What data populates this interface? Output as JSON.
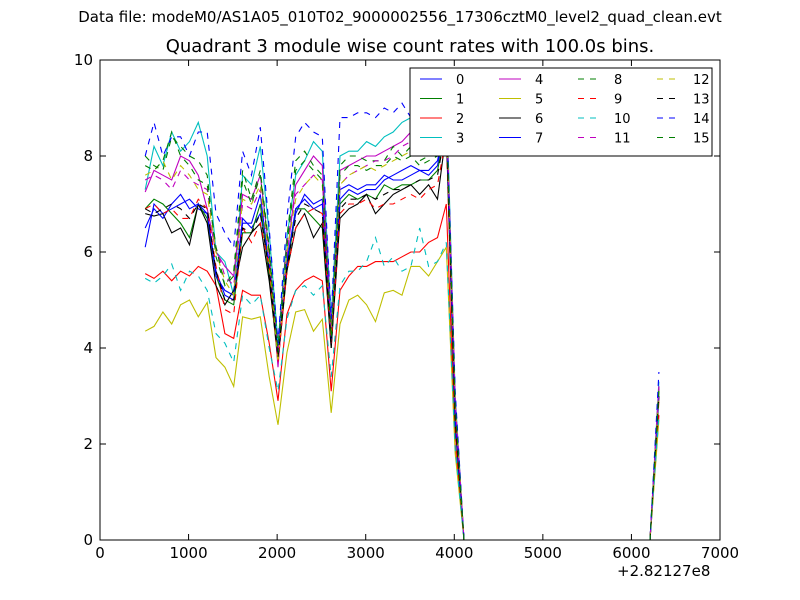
{
  "supertitle": "Data file: modeM0/AS1A05_010T02_9000002556_17306cztM0_level2_quad_clean.evt",
  "chart_data": {
    "type": "line",
    "title": "Quadrant 3 module wise count rates with 100.0s bins.",
    "xlabel": "",
    "ylabel": "",
    "x_offset_label": "+2.82127e8",
    "xlim": [
      0,
      7000
    ],
    "ylim": [
      0,
      10
    ],
    "xticks": [
      0,
      1000,
      2000,
      3000,
      4000,
      5000,
      6000,
      7000
    ],
    "yticks": [
      0,
      2,
      4,
      6,
      8,
      10
    ],
    "grid": false,
    "legend_position": "top-right",
    "legend_columns": 4,
    "x": [
      510,
      610,
      710,
      810,
      910,
      1010,
      1110,
      1210,
      1310,
      1410,
      1510,
      1610,
      1710,
      1810,
      1910,
      2010,
      2110,
      2210,
      2310,
      2410,
      2510,
      2610,
      2710,
      2810,
      2910,
      3010,
      3110,
      3210,
      3310,
      3410,
      3510,
      3610,
      3710,
      3810,
      3910,
      4010,
      4110,
      4210,
      4310,
      4410,
      4510,
      4610,
      4710,
      4810,
      4910,
      5010,
      5110,
      5210,
      5310,
      5410,
      5510,
      5610,
      5710,
      5810,
      5910,
      6010,
      6110,
      6210,
      6310
    ],
    "series": [
      {
        "name": "0",
        "color": "#0000ff",
        "dash": "solid",
        "values": [
          6.1,
          7.0,
          6.8,
          6.9,
          7.0,
          7.1,
          6.9,
          6.8,
          5.6,
          5.1,
          5.0,
          6.7,
          6.5,
          6.8,
          5.8,
          3.9,
          5.7,
          6.8,
          7.2,
          7.0,
          7.1,
          4.2,
          7.3,
          7.4,
          7.3,
          7.4,
          7.4,
          7.6,
          7.5,
          7.5,
          7.6,
          7.7,
          7.6,
          7.8,
          8.8,
          2.5,
          0,
          0,
          0,
          0,
          0,
          0,
          0,
          0,
          0,
          0,
          0,
          0,
          0,
          0,
          0,
          0,
          0,
          0,
          0,
          0,
          0,
          0,
          3.2
        ]
      },
      {
        "name": "1",
        "color": "#007f00",
        "dash": "solid",
        "values": [
          6.9,
          7.1,
          7.0,
          6.8,
          6.6,
          6.3,
          7.0,
          6.7,
          5.5,
          5.0,
          4.9,
          6.4,
          6.4,
          7.0,
          5.5,
          3.7,
          5.6,
          6.9,
          6.9,
          6.7,
          6.5,
          4.0,
          7.0,
          7.2,
          7.1,
          7.2,
          7.1,
          7.4,
          7.3,
          7.4,
          7.4,
          7.5,
          7.5,
          7.7,
          8.6,
          2.4,
          0,
          0,
          0,
          0,
          0,
          0,
          0,
          0,
          0,
          0,
          0,
          0,
          0,
          0,
          0,
          0,
          0,
          0,
          0,
          0,
          0,
          0,
          3.0
        ]
      },
      {
        "name": "2",
        "color": "#ff0000",
        "dash": "solid",
        "values": [
          5.55,
          5.45,
          5.6,
          5.4,
          5.6,
          5.5,
          5.7,
          5.6,
          5.3,
          4.3,
          4.2,
          5.2,
          5.1,
          5.1,
          4.1,
          2.9,
          4.7,
          5.2,
          5.4,
          5.5,
          5.4,
          3.1,
          5.2,
          5.5,
          5.7,
          5.7,
          5.8,
          5.8,
          5.8,
          5.9,
          6.0,
          6.0,
          6.2,
          6.3,
          7.0,
          2.0,
          0,
          0,
          0,
          0,
          0,
          0,
          0,
          0,
          0,
          0,
          0,
          0,
          0,
          0,
          0,
          0,
          0,
          0,
          0,
          0,
          0,
          0,
          2.6
        ]
      },
      {
        "name": "3",
        "color": "#00bfbf",
        "dash": "solid",
        "values": [
          7.3,
          8.2,
          7.8,
          8.5,
          8.1,
          8.3,
          8.7,
          8.0,
          6.0,
          5.8,
          5.1,
          7.6,
          7.4,
          8.2,
          6.4,
          4.1,
          6.3,
          7.6,
          7.9,
          8.3,
          8.1,
          4.6,
          8.0,
          8.1,
          8.1,
          8.3,
          8.2,
          8.4,
          8.5,
          8.7,
          8.8,
          8.9,
          9.0,
          9.1,
          9.4,
          3.0,
          0,
          0,
          0,
          0,
          0,
          0,
          0,
          0,
          0,
          0,
          0,
          0,
          0,
          0,
          0,
          0,
          0,
          0,
          0,
          0,
          0,
          0,
          3.3
        ]
      },
      {
        "name": "4",
        "color": "#bf00bf",
        "dash": "solid",
        "values": [
          7.25,
          7.7,
          7.6,
          7.5,
          8.0,
          7.9,
          7.6,
          6.9,
          6.0,
          5.7,
          5.5,
          7.2,
          7.1,
          7.6,
          6.0,
          3.6,
          5.9,
          7.4,
          7.7,
          8.0,
          7.8,
          4.3,
          7.7,
          7.8,
          7.9,
          8.0,
          8.0,
          8.1,
          8.2,
          8.3,
          8.5,
          8.6,
          8.7,
          8.8,
          9.1,
          2.9,
          0,
          0,
          0,
          0,
          0,
          0,
          0,
          0,
          0,
          0,
          0,
          0,
          0,
          0,
          0,
          0,
          0,
          0,
          0,
          0,
          0,
          0,
          3.2
        ]
      },
      {
        "name": "5",
        "color": "#bfbf00",
        "dash": "solid",
        "values": [
          4.35,
          4.45,
          4.75,
          4.5,
          4.9,
          5.0,
          4.65,
          4.95,
          3.8,
          3.6,
          3.2,
          4.65,
          4.6,
          4.65,
          3.4,
          2.4,
          3.9,
          4.75,
          4.8,
          4.35,
          4.6,
          2.65,
          4.5,
          5.0,
          5.1,
          4.9,
          4.55,
          5.15,
          5.2,
          5.1,
          5.7,
          5.7,
          5.5,
          5.8,
          6.1,
          1.8,
          0,
          0,
          0,
          0,
          0,
          0,
          0,
          0,
          0,
          0,
          0,
          0,
          0,
          0,
          0,
          0,
          0,
          0,
          0,
          0,
          0,
          0,
          2.5
        ]
      },
      {
        "name": "6",
        "color": "#000000",
        "dash": "solid",
        "values": [
          6.8,
          6.75,
          6.8,
          6.4,
          6.5,
          6.15,
          7.0,
          6.6,
          5.3,
          4.9,
          5.2,
          6.1,
          6.4,
          6.6,
          5.4,
          3.8,
          5.6,
          6.5,
          6.8,
          6.3,
          6.6,
          4.0,
          6.7,
          6.9,
          7.0,
          7.2,
          6.8,
          7.0,
          7.2,
          7.3,
          7.4,
          7.2,
          7.4,
          7.1,
          8.5,
          2.4,
          0,
          0,
          0,
          0,
          0,
          0,
          0,
          0,
          0,
          0,
          0,
          0,
          0,
          0,
          0,
          0,
          0,
          0,
          0,
          0,
          0,
          0,
          3.0
        ]
      },
      {
        "name": "7",
        "color": "#0000ff",
        "dash": "solid",
        "values": [
          6.5,
          6.9,
          6.7,
          7.0,
          7.2,
          6.9,
          7.0,
          6.8,
          5.5,
          5.2,
          5.1,
          6.6,
          6.6,
          7.2,
          5.7,
          3.9,
          5.8,
          6.9,
          7.1,
          6.9,
          7.0,
          4.1,
          7.1,
          7.3,
          7.2,
          7.3,
          7.3,
          7.5,
          7.6,
          7.7,
          7.8,
          7.7,
          7.7,
          7.9,
          8.8,
          2.5,
          0,
          0,
          0,
          0,
          0,
          0,
          0,
          0,
          0,
          0,
          0,
          0,
          0,
          0,
          0,
          0,
          0,
          0,
          0,
          0,
          0,
          0,
          3.1
        ]
      },
      {
        "name": "8",
        "color": "#007f00",
        "dash": "dash",
        "values": [
          8.0,
          7.8,
          7.7,
          8.4,
          8.2,
          8.0,
          7.9,
          7.6,
          5.9,
          5.3,
          5.6,
          7.7,
          7.1,
          7.7,
          6.1,
          4.0,
          6.3,
          7.9,
          8.1,
          7.8,
          7.6,
          4.3,
          7.8,
          8.0,
          8.0,
          7.9,
          7.9,
          7.9,
          8.2,
          8.0,
          8.2,
          7.9,
          8.0,
          8.1,
          9.0,
          2.8,
          0,
          0,
          0,
          0,
          0,
          0,
          0,
          0,
          0,
          0,
          0,
          0,
          0,
          0,
          0,
          0,
          0,
          0,
          0,
          0,
          0,
          0,
          3.2
        ]
      },
      {
        "name": "9",
        "color": "#ff0000",
        "dash": "dash",
        "values": [
          6.9,
          7.0,
          6.8,
          6.9,
          6.7,
          6.7,
          7.1,
          6.9,
          5.7,
          4.8,
          4.7,
          6.5,
          6.2,
          6.6,
          5.7,
          3.7,
          5.6,
          6.5,
          6.8,
          6.9,
          6.8,
          4.1,
          6.8,
          7.0,
          7.0,
          7.1,
          6.9,
          7.0,
          7.0,
          7.1,
          7.2,
          7.1,
          7.3,
          7.4,
          8.4,
          2.4,
          0,
          0,
          0,
          0,
          0,
          0,
          0,
          0,
          0,
          0,
          0,
          0,
          0,
          0,
          0,
          0,
          0,
          0,
          0,
          0,
          0,
          0,
          2.9
        ]
      },
      {
        "name": "10",
        "color": "#00bfbf",
        "dash": "dash",
        "values": [
          5.45,
          5.35,
          5.5,
          5.75,
          5.2,
          5.6,
          5.5,
          5.2,
          4.3,
          4.1,
          3.7,
          5.1,
          4.9,
          5.1,
          4.0,
          3.1,
          4.6,
          5.2,
          5.3,
          5.1,
          5.3,
          3.4,
          5.3,
          5.6,
          5.6,
          5.8,
          6.3,
          5.7,
          5.9,
          5.6,
          5.7,
          6.5,
          5.7,
          5.8,
          6.2,
          1.9,
          0,
          0,
          0,
          0,
          0,
          0,
          0,
          0,
          0,
          0,
          0,
          0,
          0,
          0,
          0,
          0,
          0,
          0,
          0,
          0,
          0,
          0,
          2.6
        ]
      },
      {
        "name": "11",
        "color": "#bf00bf",
        "dash": "dash",
        "values": [
          7.5,
          7.6,
          7.5,
          7.3,
          7.7,
          7.5,
          7.4,
          7.3,
          6.1,
          5.5,
          5.3,
          7.0,
          6.9,
          7.3,
          5.9,
          3.9,
          6.2,
          7.2,
          7.4,
          7.6,
          7.5,
          4.4,
          7.4,
          7.6,
          7.7,
          7.8,
          7.9,
          7.9,
          8.0,
          8.2,
          8.3,
          8.4,
          8.5,
          8.6,
          9.0,
          2.9,
          0,
          0,
          0,
          0,
          0,
          0,
          0,
          0,
          0,
          0,
          0,
          0,
          0,
          0,
          0,
          0,
          0,
          0,
          0,
          0,
          0,
          0,
          3.2
        ]
      },
      {
        "name": "12",
        "color": "#bfbf00",
        "dash": "dash",
        "values": [
          7.6,
          7.7,
          7.9,
          7.5,
          7.8,
          7.6,
          7.3,
          7.2,
          6.0,
          5.4,
          5.1,
          7.1,
          7.0,
          7.4,
          5.8,
          3.7,
          6.0,
          7.1,
          7.4,
          7.6,
          7.4,
          4.3,
          7.4,
          7.6,
          7.7,
          7.8,
          7.7,
          7.8,
          7.9,
          8.0,
          8.1,
          8.2,
          8.2,
          8.3,
          8.9,
          2.8,
          0,
          0,
          0,
          0,
          0,
          0,
          0,
          0,
          0,
          0,
          0,
          0,
          0,
          0,
          0,
          0,
          0,
          0,
          0,
          0,
          0,
          0,
          3.1
        ]
      },
      {
        "name": "13",
        "color": "#000000",
        "dash": "dash",
        "values": [
          6.9,
          6.8,
          6.9,
          7.0,
          6.9,
          6.7,
          7.0,
          6.9,
          5.6,
          5.0,
          5.0,
          6.5,
          6.4,
          6.8,
          5.6,
          3.8,
          5.7,
          6.7,
          7.0,
          6.9,
          6.8,
          4.1,
          6.9,
          7.1,
          7.1,
          7.2,
          7.1,
          7.2,
          7.3,
          7.3,
          7.4,
          7.5,
          7.5,
          7.6,
          8.6,
          2.5,
          0,
          0,
          0,
          0,
          0,
          0,
          0,
          0,
          0,
          0,
          0,
          0,
          0,
          0,
          0,
          0,
          0,
          0,
          0,
          0,
          0,
          0,
          3.0
        ]
      },
      {
        "name": "14",
        "color": "#0000ff",
        "dash": "dash",
        "values": [
          8.0,
          8.7,
          8.0,
          8.4,
          8.4,
          8.0,
          8.5,
          8.5,
          6.8,
          6.4,
          6.1,
          8.1,
          7.6,
          8.6,
          6.5,
          4.1,
          6.7,
          8.4,
          8.7,
          8.5,
          8.4,
          4.6,
          8.8,
          8.8,
          8.9,
          8.9,
          8.8,
          9.0,
          8.9,
          9.1,
          8.8,
          9.0,
          8.9,
          9.1,
          9.1,
          3.1,
          0,
          0,
          0,
          0,
          0,
          0,
          0,
          0,
          0,
          0,
          0,
          0,
          0,
          0,
          0,
          0,
          0,
          0,
          0,
          0,
          0,
          0,
          3.5
        ]
      },
      {
        "name": "15",
        "color": "#007f00",
        "dash": "dash",
        "values": [
          7.8,
          7.7,
          7.9,
          8.5,
          8.0,
          7.8,
          7.5,
          7.4,
          6.1,
          5.3,
          5.5,
          7.5,
          7.0,
          7.6,
          6.0,
          3.9,
          6.1,
          7.7,
          7.9,
          7.7,
          7.5,
          4.2,
          7.6,
          7.8,
          7.8,
          7.7,
          7.8,
          7.8,
          8.0,
          7.9,
          8.0,
          7.8,
          7.9,
          8.0,
          8.9,
          2.8,
          0,
          0,
          0,
          0,
          0,
          0,
          0,
          0,
          0,
          0,
          0,
          0,
          0,
          0,
          0,
          0,
          0,
          0,
          0,
          0,
          0,
          0,
          3.1
        ]
      }
    ]
  }
}
